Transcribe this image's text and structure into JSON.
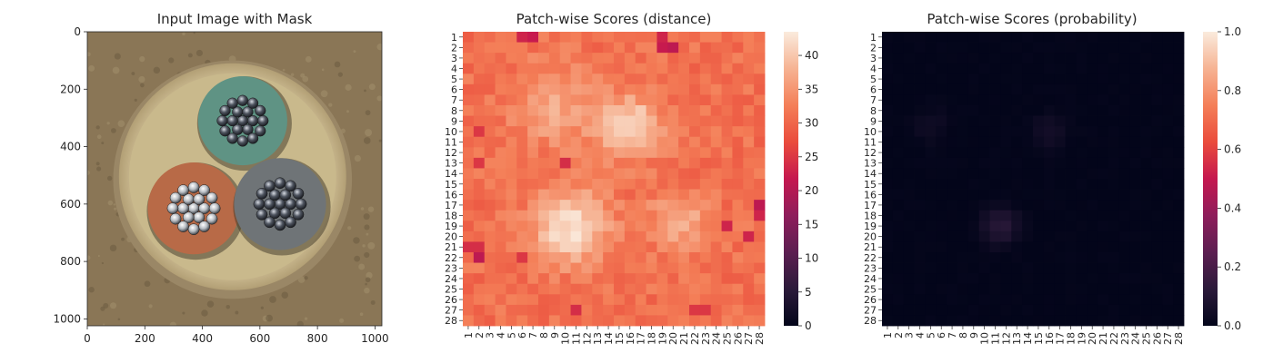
{
  "chart_data": [
    {
      "type": "image",
      "title": "Input Image with Mask",
      "xlim": [
        0,
        1024
      ],
      "ylim": [
        1024,
        0
      ],
      "xticks": [
        "0",
        "200",
        "400",
        "600",
        "800",
        "1000"
      ],
      "yticks": [
        "0",
        "200",
        "400",
        "600",
        "800",
        "1000"
      ],
      "scene": {
        "background": "#8a7656",
        "outer_ring": "#d6c79c",
        "cables": [
          {
            "color": "#5f9384",
            "strands": "dark",
            "cx": 540,
            "cy": 310,
            "r": 155
          },
          {
            "color": "#b86a47",
            "strands": "silver",
            "cx": 370,
            "cy": 615,
            "r": 160
          },
          {
            "color": "#6f7477",
            "strands": "dark",
            "cx": 670,
            "cy": 600,
            "r": 160
          }
        ]
      }
    },
    {
      "type": "heatmap",
      "title": "Patch-wise Scores (distance)",
      "xticks": [
        "1",
        "2",
        "3",
        "4",
        "5",
        "6",
        "7",
        "8",
        "9",
        "10",
        "11",
        "12",
        "13",
        "14",
        "15",
        "16",
        "17",
        "18",
        "19",
        "20",
        "21",
        "22",
        "23",
        "24",
        "25",
        "26",
        "27",
        "28"
      ],
      "yticks": [
        "1",
        "2",
        "3",
        "4",
        "5",
        "6",
        "7",
        "8",
        "9",
        "10",
        "11",
        "12",
        "13",
        "14",
        "15",
        "16",
        "17",
        "18",
        "19",
        "20",
        "21",
        "22",
        "23",
        "24",
        "25",
        "26",
        "27",
        "28"
      ],
      "vmin": 0,
      "vmax": 43.5,
      "colorbar_ticks": [
        "0",
        "5",
        "10",
        "15",
        "20",
        "25",
        "30",
        "35",
        "40"
      ],
      "baseline": 31,
      "hotspots": [
        {
          "row": 19,
          "col": 10.5,
          "peak": 43,
          "spread": 2.4
        },
        {
          "row": 9.5,
          "col": 16,
          "peak": 42,
          "spread": 2.0
        },
        {
          "row": 18.5,
          "col": 20.5,
          "peak": 38,
          "spread": 1.8
        },
        {
          "row": 7.5,
          "col": 9,
          "peak": 37,
          "spread": 2.6
        }
      ],
      "cold_cells": [
        [
          1,
          6,
          23
        ],
        [
          1,
          7,
          22
        ],
        [
          1,
          19,
          23
        ],
        [
          2,
          19,
          22
        ],
        [
          2,
          20,
          21
        ],
        [
          10,
          2,
          25
        ],
        [
          13,
          2,
          25
        ],
        [
          13,
          10,
          24
        ],
        [
          17,
          28,
          21
        ],
        [
          18,
          28,
          23
        ],
        [
          19,
          25,
          23
        ],
        [
          20,
          27,
          23
        ],
        [
          21,
          1,
          24
        ],
        [
          21,
          2,
          24
        ],
        [
          22,
          2,
          21
        ],
        [
          22,
          6,
          25
        ],
        [
          27,
          11,
          24
        ],
        [
          27,
          22,
          25
        ],
        [
          27,
          23,
          25
        ]
      ]
    },
    {
      "type": "heatmap",
      "title": "Patch-wise Scores (probability)",
      "xticks": [
        "1",
        "2",
        "3",
        "4",
        "5",
        "6",
        "7",
        "8",
        "9",
        "10",
        "11",
        "12",
        "13",
        "14",
        "15",
        "16",
        "17",
        "18",
        "19",
        "20",
        "21",
        "22",
        "23",
        "24",
        "25",
        "26",
        "27",
        "28"
      ],
      "yticks": [
        "1",
        "2",
        "3",
        "4",
        "5",
        "6",
        "7",
        "8",
        "9",
        "10",
        "11",
        "12",
        "13",
        "14",
        "15",
        "16",
        "17",
        "18",
        "19",
        "20",
        "21",
        "22",
        "23",
        "24",
        "25",
        "26",
        "27",
        "28"
      ],
      "vmin": 0,
      "vmax": 1,
      "colorbar_ticks": [
        "0.0",
        "0.2",
        "0.4",
        "0.6",
        "0.8",
        "1.0"
      ],
      "baseline": 0.0,
      "hotspots": [
        {
          "row": 19,
          "col": 11.5,
          "peak": 0.12,
          "spread": 1.2
        },
        {
          "row": 10,
          "col": 16,
          "peak": 0.05,
          "spread": 1.2
        },
        {
          "row": 9.5,
          "col": 5,
          "peak": 0.04,
          "spread": 1.2
        }
      ]
    }
  ]
}
